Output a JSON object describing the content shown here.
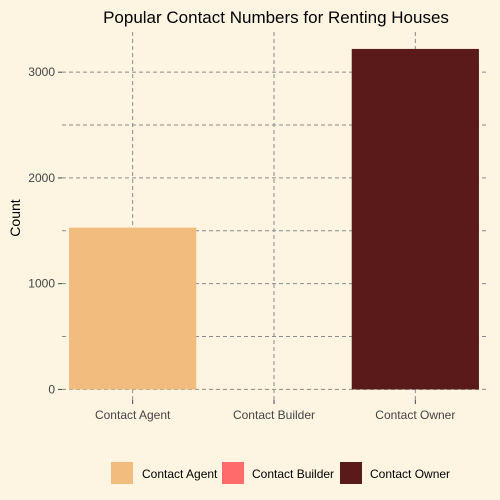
{
  "chart_data": {
    "type": "bar",
    "title": "Popular Contact Numbers for Renting Houses",
    "xlabel": "",
    "ylabel": "Count",
    "categories": [
      "Contact Agent",
      "Contact Builder",
      "Contact Owner"
    ],
    "values": [
      1530,
      1,
      3220
    ],
    "colors": [
      "#f1bc7d",
      "#ff6b6b",
      "#5a1a1a"
    ],
    "ylim": [
      -100,
      3380
    ],
    "yticks": [
      0,
      1000,
      2000,
      3000
    ],
    "grid": true,
    "legend": {
      "position": "bottom",
      "items": [
        "Contact Agent",
        "Contact Builder",
        "Contact Owner"
      ]
    }
  }
}
